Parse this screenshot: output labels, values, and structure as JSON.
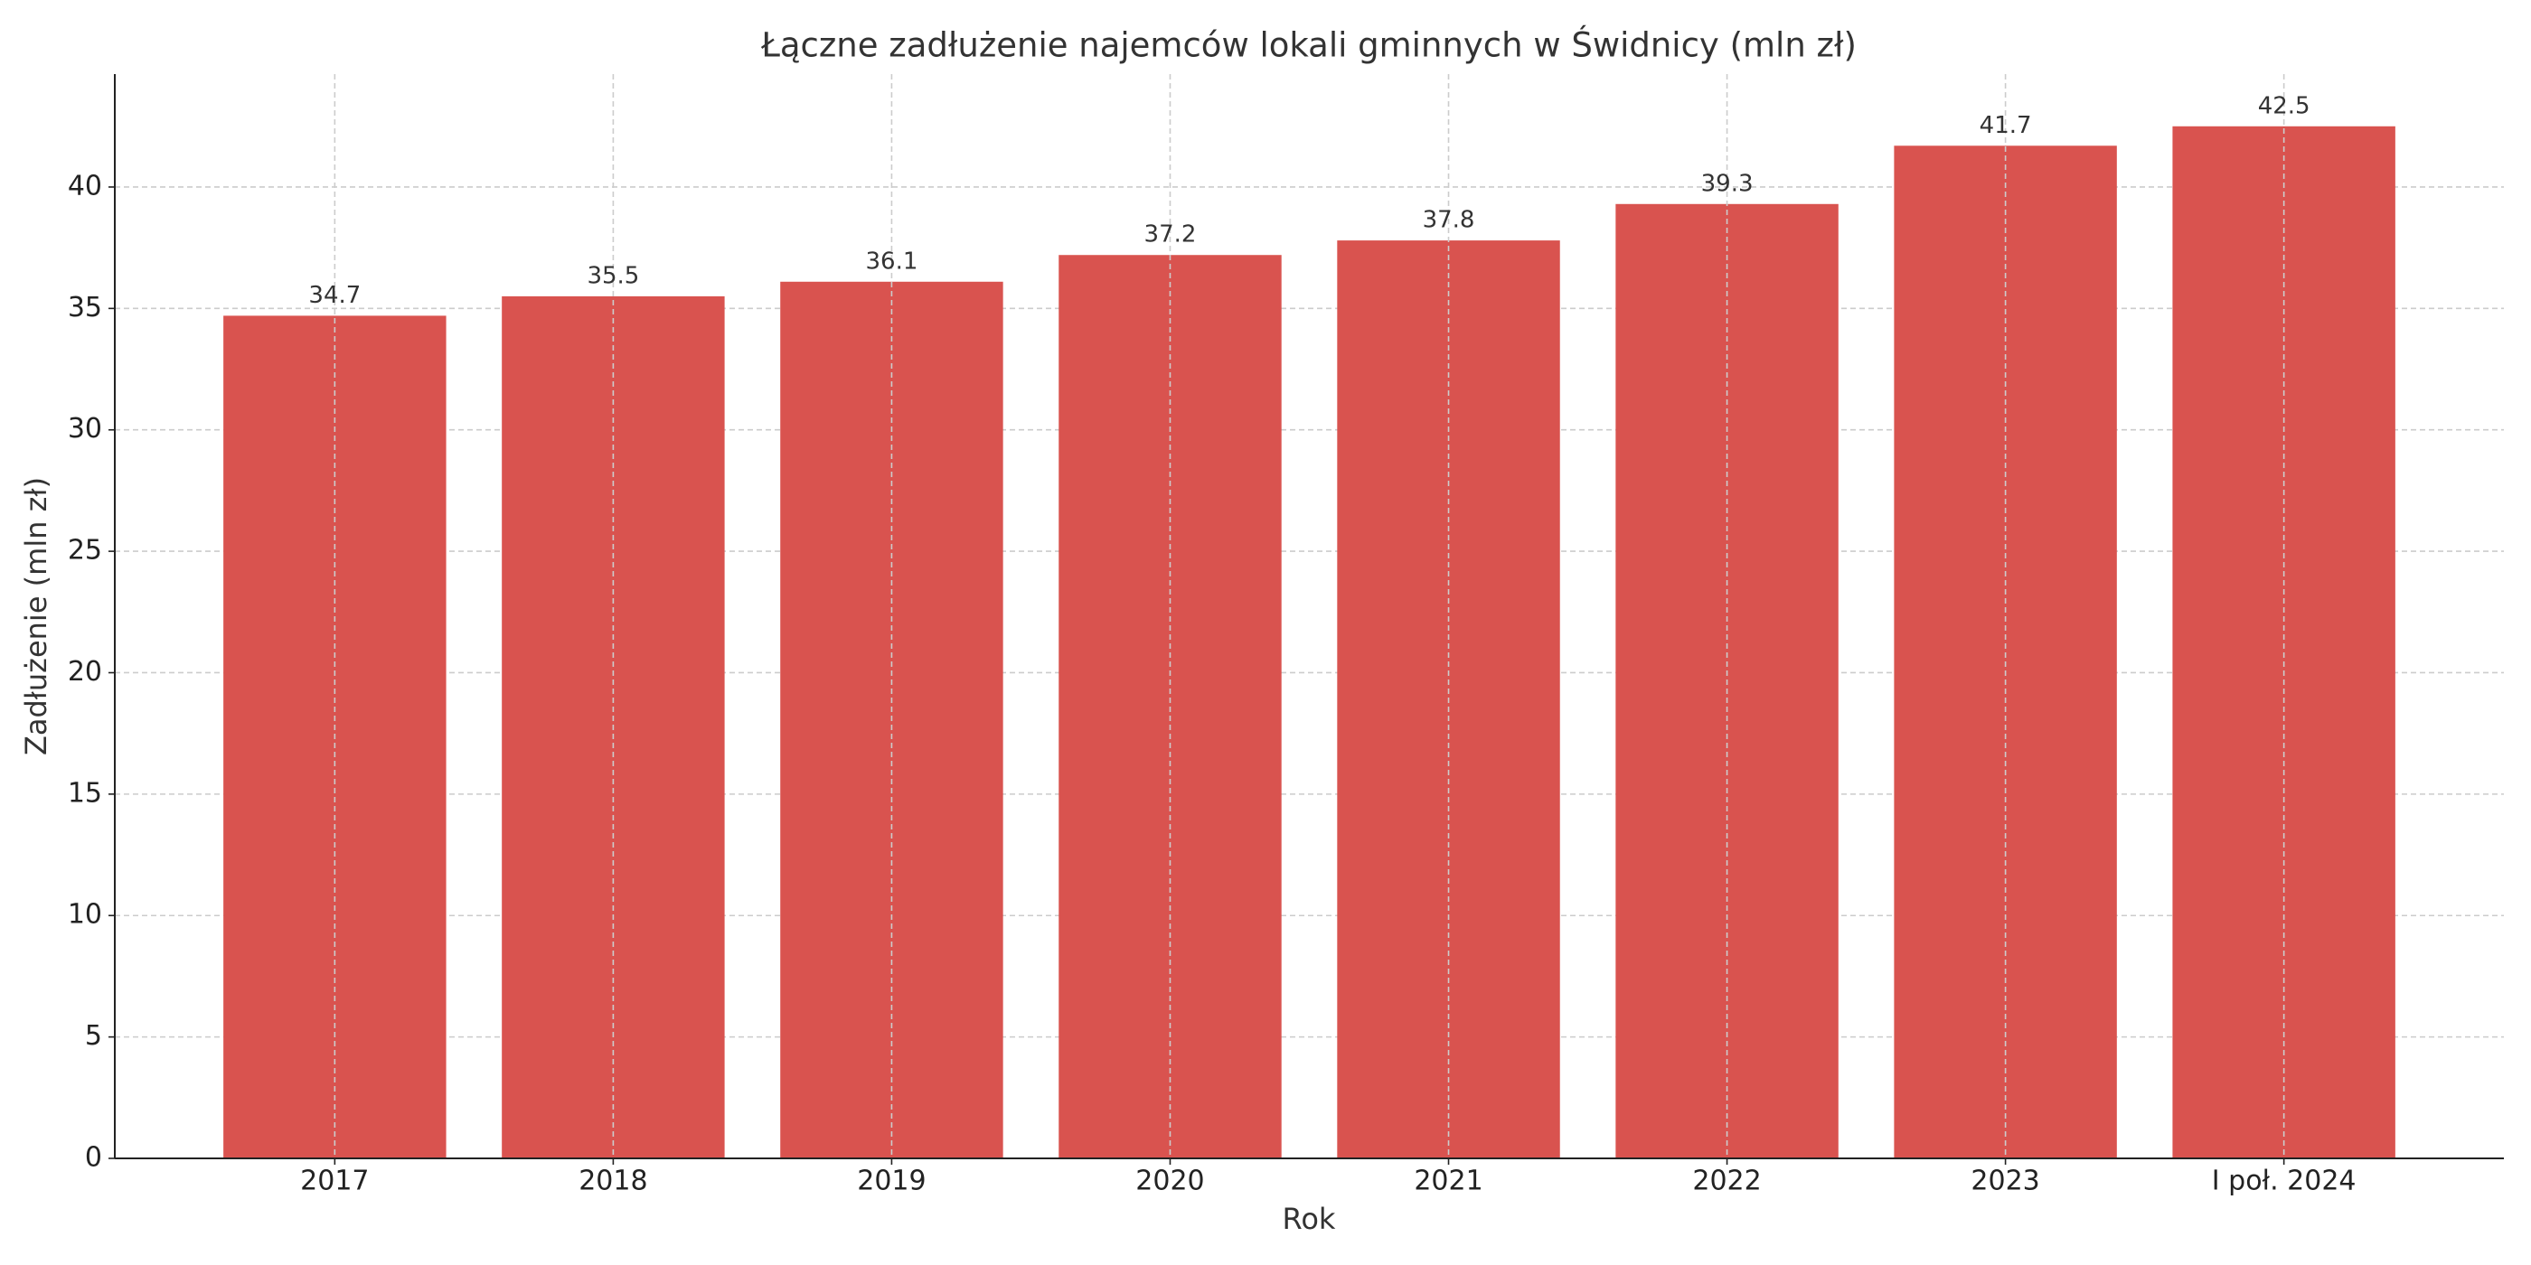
{
  "chart_data": {
    "type": "bar",
    "title": "Łączne zadłużenie najemców lokali gminnych w Świdnicy (mln zł)",
    "x_label": "Rok",
    "y_label": "Zadłużenie (mln zł)",
    "categories": [
      "2017",
      "2018",
      "2019",
      "2020",
      "2021",
      "2022",
      "2023",
      "I poł. 2024"
    ],
    "values": [
      34.7,
      35.5,
      36.1,
      37.2,
      37.8,
      39.3,
      41.7,
      42.5
    ],
    "color": "#d9534f",
    "ylim": [
      0,
      44.65
    ],
    "yticks": [
      0,
      5,
      10,
      15,
      20,
      25,
      30,
      35,
      40
    ],
    "grid": true
  }
}
